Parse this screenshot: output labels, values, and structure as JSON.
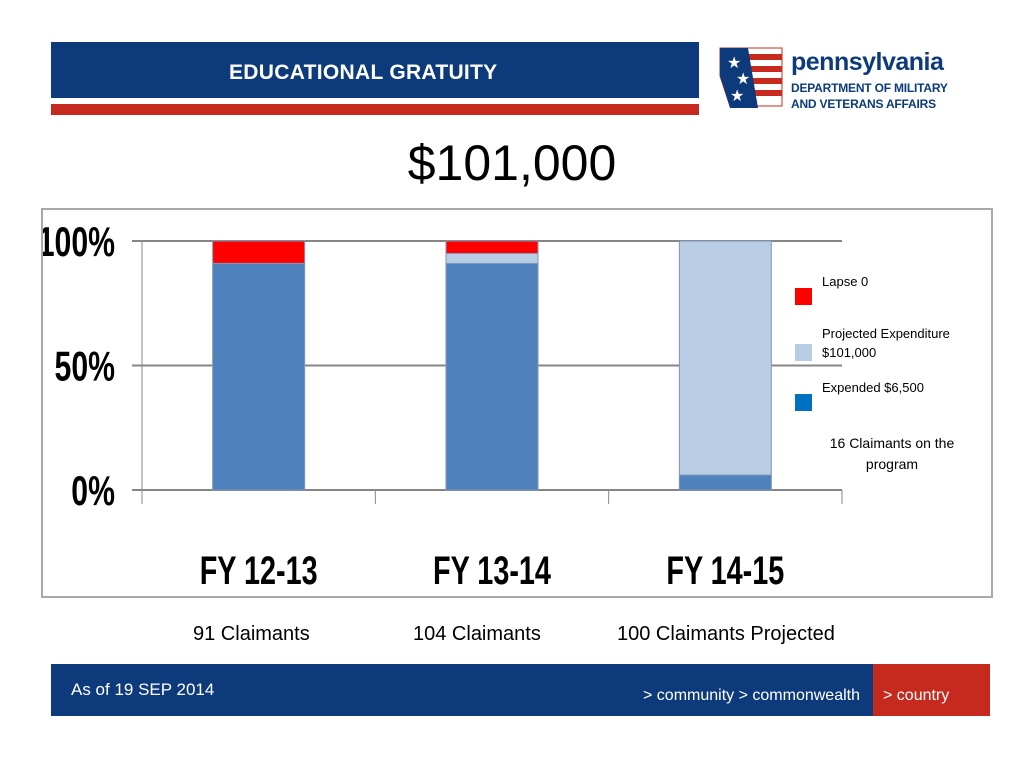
{
  "header": {
    "title": "EDUCATIONAL GRATUITY"
  },
  "logo": {
    "name": "pennsylvania",
    "line1": "DEPARTMENT OF MILITARY",
    "line2": "AND VETERANS AFFAIRS"
  },
  "headline_amount": "$101,000",
  "chart_data": {
    "type": "bar",
    "stacked": true,
    "categories": [
      "FY 12-13",
      "FY 13-14",
      "FY 14-15"
    ],
    "series": [
      {
        "name": "Expended $6,500",
        "color": "#4f81bd",
        "values": [
          91,
          91,
          6
        ]
      },
      {
        "name": "Projected Expenditure $101,000",
        "color": "#b8cce4",
        "values": [
          0,
          4,
          94
        ]
      },
      {
        "name": "Lapse 0",
        "color": "#ff0000",
        "values": [
          9,
          5,
          0
        ]
      }
    ],
    "yticks": [
      "0%",
      "50%",
      "100%"
    ],
    "ylim": [
      0,
      100
    ],
    "legend": [
      "Lapse 0",
      "Projected Expenditure $101,000",
      "Expended $6,500"
    ],
    "legend_colors": [
      "#ff0000",
      "#b8cce4",
      "#0070c0"
    ],
    "legend_lines": [
      [
        "Lapse 0"
      ],
      [
        "Projected Expenditure",
        "$101,000"
      ],
      [
        "Expended $6,500"
      ]
    ],
    "legend_position": "right",
    "annotation": [
      "16 Claimants on the",
      "program"
    ],
    "grid": true
  },
  "claimants": [
    "91 Claimants",
    "104 Claimants",
    "100 Claimants Projected"
  ],
  "footer": {
    "date": "As of 19 SEP 2014",
    "links": "> community > commonwealth",
    "country": "> country"
  }
}
